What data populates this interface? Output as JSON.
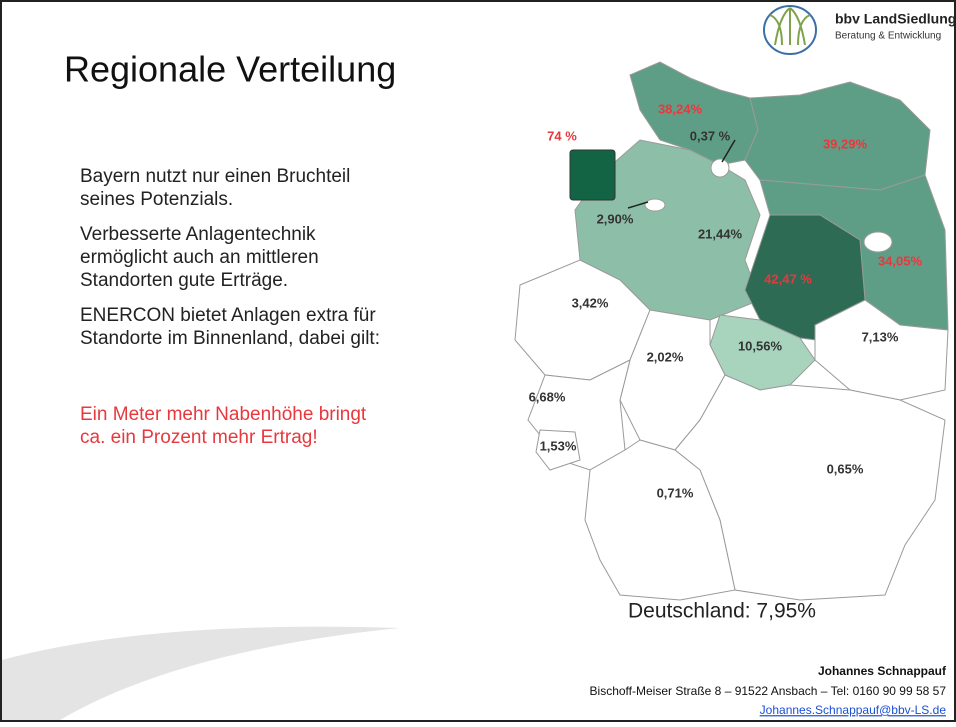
{
  "logo": {
    "name": "bbv LandSiedlung",
    "tagline": "Beratung & Entwicklung"
  },
  "title": "Regionale Verteilung",
  "paragraphs": [
    [
      "Bayern nutzt nur einen Bruchteil",
      "seines Potenzials."
    ],
    [
      "Verbesserte Anlagentechnik",
      "ermöglicht auch an mittleren",
      "Standorten gute Erträge."
    ],
    [
      "ENERCON bietet Anlagen extra für",
      "Standorte im Binnenland, dabei gilt:"
    ]
  ],
  "highlight": [
    "Ein Meter mehr Nabenhöhe bringt",
    "ca. ein Prozent mehr Ertrag!"
  ],
  "map": {
    "labels": [
      "74 %",
      "38,24%",
      "0,37 %",
      "39,29%",
      "2,90%",
      "21,44%",
      "42,47 %",
      "34,05%",
      "3,42%",
      "10,56%",
      "7,13%",
      "2,02%",
      "6,68%",
      "1,53%",
      "0,65%",
      "0,71%"
    ]
  },
  "summary": "Deutschland: 7,95%",
  "footer": {
    "name": "Johannes Schnappauf",
    "address": "Bischoff-Meiser Straße 8  –  91522 Ansbach  –  Tel: 0160 90 99 58 57",
    "email": "Johannes.Schnappauf@bbv-LS.de"
  }
}
